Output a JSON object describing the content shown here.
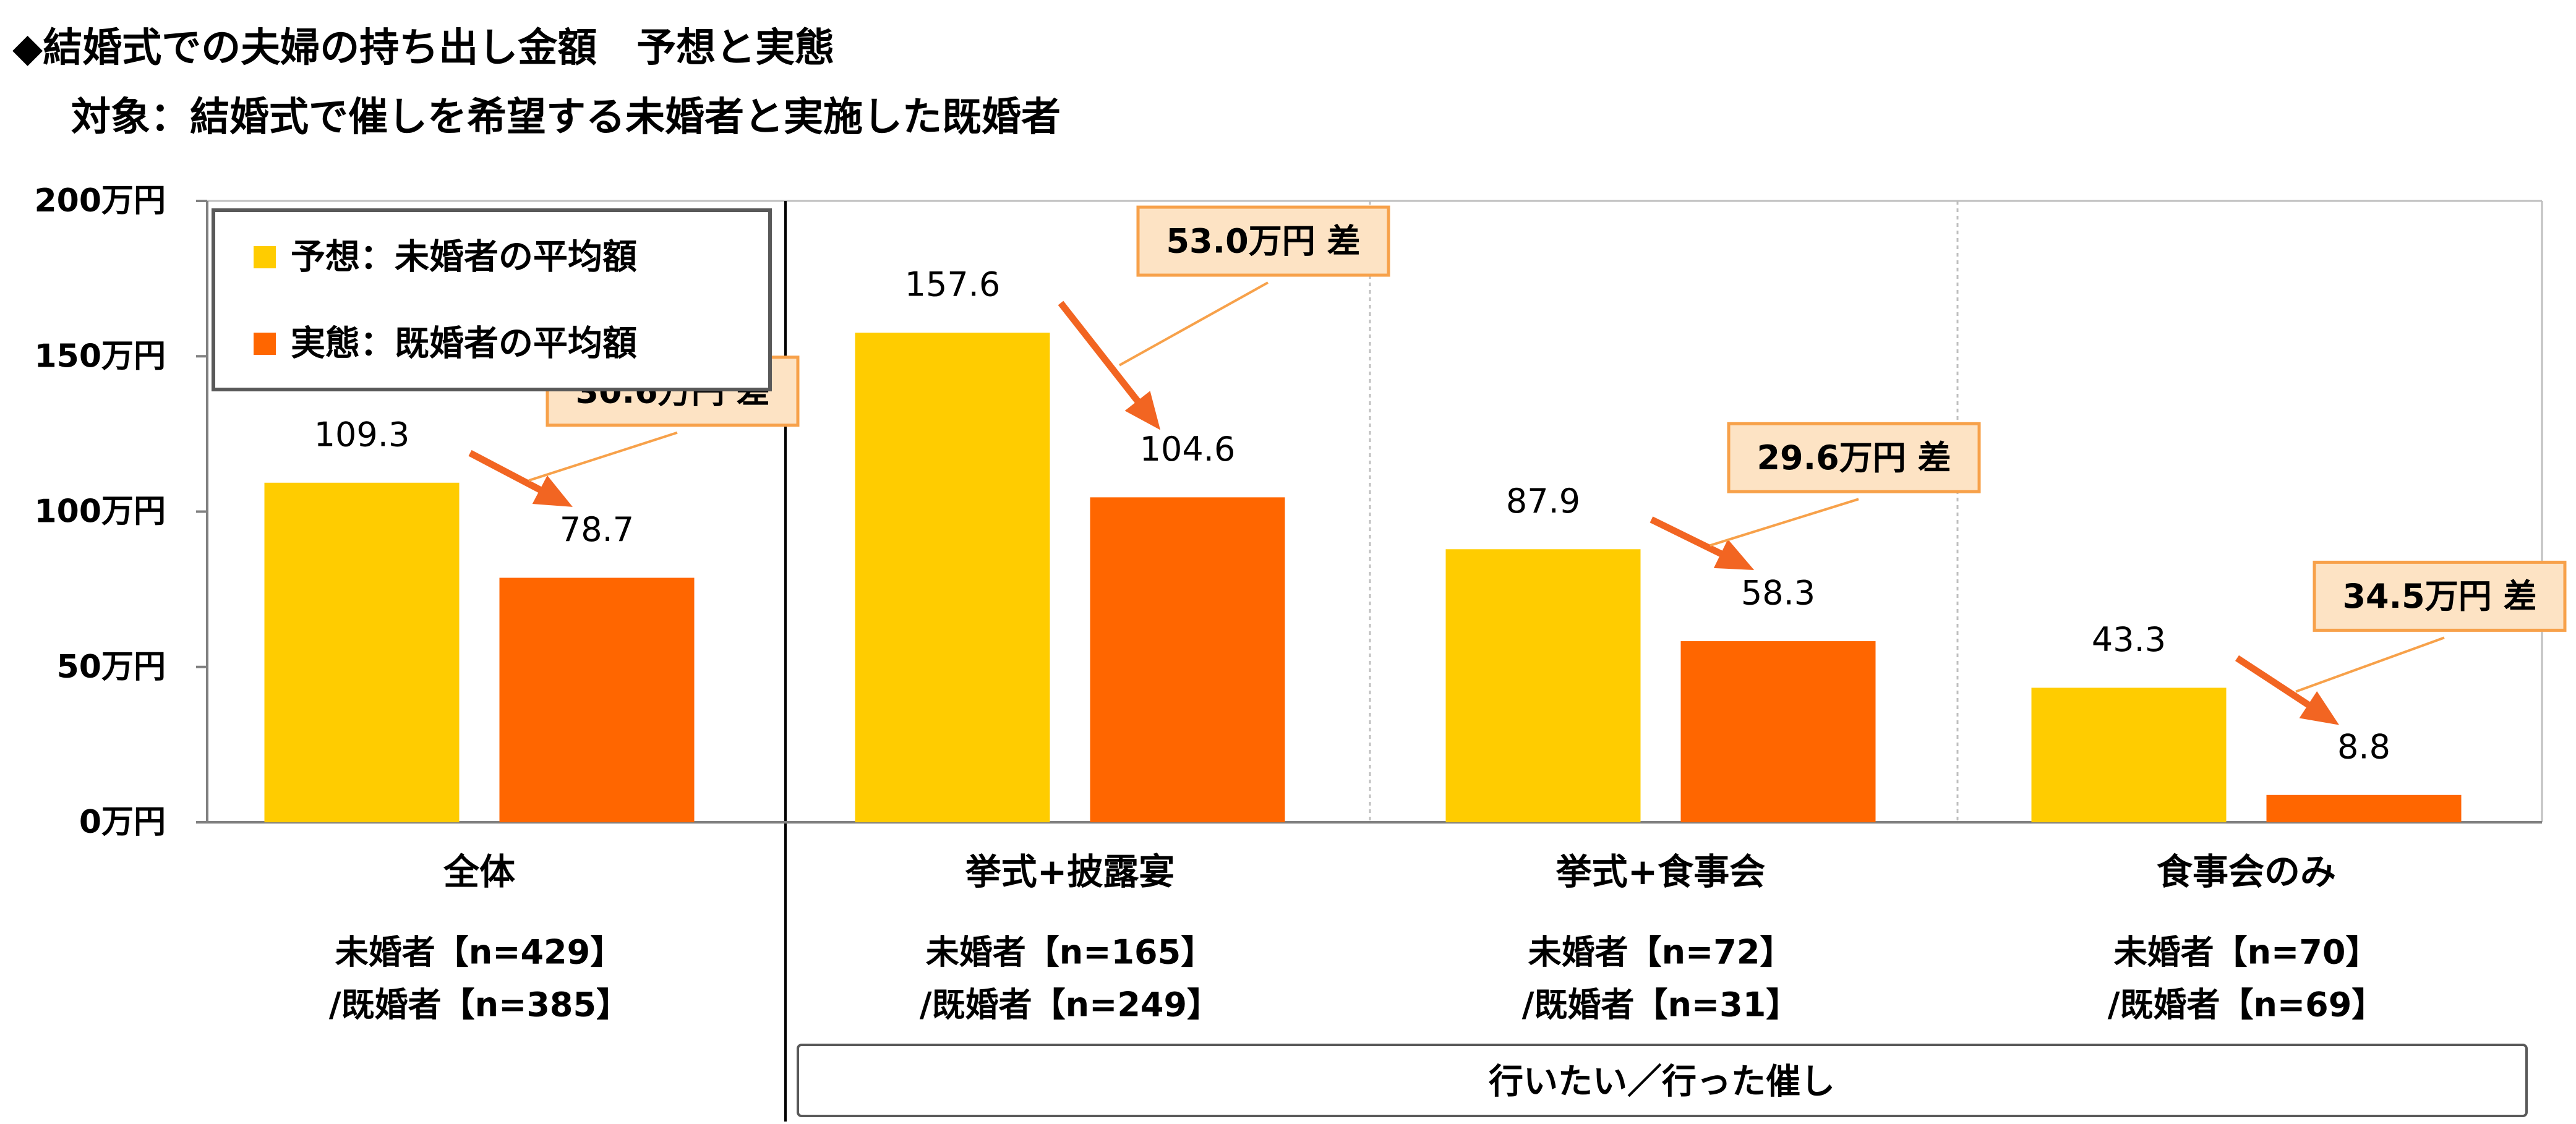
{
  "title": {
    "line1": "◆結婚式での夫婦の持ち出し金額　予想と実態",
    "line2": "対象：結婚式で催しを希望する未婚者と実施した既婚者"
  },
  "colors": {
    "expected": "#FFCC00",
    "actual": "#FF6600",
    "arrow": "#F26522",
    "diff_box_fill": "#FDE3C4",
    "diff_box_border": "#F7A14A",
    "grid_divider": "#BFBFBF",
    "axis": "#808080",
    "text": "#000000"
  },
  "legend": {
    "expected_label": "予想：未婚者の平均額",
    "actual_label": "実態：既婚者の平均額"
  },
  "group_label": "行いたい／行った催し",
  "chart_data": {
    "type": "bar",
    "title": "◆結婚式での夫婦の持ち出し金額　予想と実態",
    "subtitle": "対象：結婚式で催しを希望する未婚者と実施した既婚者",
    "categories": [
      "全体",
      "挙式+披露宴",
      "挙式+食事会",
      "食事会のみ"
    ],
    "sample_sizes": [
      {
        "line1": "未婚者【n=429】",
        "line2": "/既婚者【n=385】"
      },
      {
        "line1": "未婚者【n=165】",
        "line2": "/既婚者【n=249】"
      },
      {
        "line1": "未婚者【n=72】",
        "line2": "/既婚者【n=31】"
      },
      {
        "line1": "未婚者【n=70】",
        "line2": "/既婚者【n=69】"
      }
    ],
    "series": [
      {
        "name": "予想：未婚者の平均額",
        "values": [
          109.3,
          157.6,
          87.9,
          43.3
        ],
        "labels": [
          "109.3",
          "157.6",
          "87.9",
          "43.3"
        ]
      },
      {
        "name": "実態：既婚者の平均額",
        "values": [
          78.7,
          104.6,
          58.3,
          8.8
        ],
        "labels": [
          "78.7",
          "104.6",
          "58.3",
          "8.8"
        ]
      }
    ],
    "differences": [
      "30.6万円 差",
      "53.0万円 差",
      "29.6万円 差",
      "34.5万円 差"
    ],
    "ylim": [
      0,
      200
    ],
    "y_ticks": [
      0,
      50,
      100,
      150,
      200
    ],
    "y_tick_labels": [
      "0万円",
      "50万円",
      "100万円",
      "150万円",
      "200万円"
    ],
    "legend_position": "top-left",
    "grid": false
  }
}
